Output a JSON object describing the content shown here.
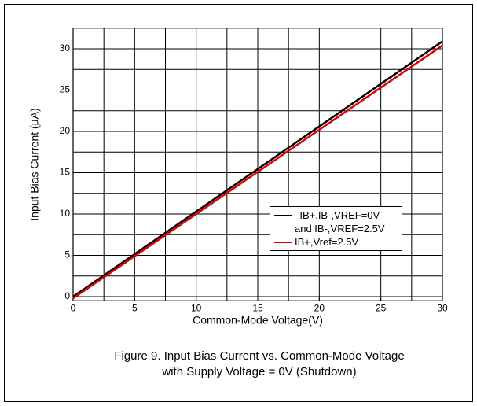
{
  "chart_data": {
    "type": "line",
    "xlabel": "Common-Mode Voltage(V)",
    "ylabel": "Input Bias Current (µA)",
    "caption": [
      "Figure 9. Input Bias Current vs. Common-Mode Voltage",
      "with Supply Voltage = 0V (Shutdown)"
    ],
    "x": [
      0,
      30
    ],
    "series": [
      {
        "name": "IB+,IB-,VREF=0V\nand IB-,VREF=2.5V",
        "color": "#000000",
        "values": [
          0,
          30.9
        ]
      },
      {
        "name": "IB+,Vref=2.5V",
        "color": "#e00000",
        "values": [
          -0.2,
          30.4
        ]
      }
    ],
    "xlim": [
      0,
      30
    ],
    "xticks": [
      0,
      5,
      10,
      15,
      20,
      25,
      30
    ],
    "ylim": [
      -0.5,
      32.5
    ],
    "yticks": [
      0,
      5,
      10,
      15,
      20,
      25,
      30
    ],
    "xgrid": [
      2.5,
      5,
      7.5,
      10,
      12.5,
      15,
      17.5,
      20,
      22.5,
      25,
      27.5
    ],
    "ygrid": [
      0,
      2.5,
      5,
      7.5,
      10,
      12.5,
      15,
      17.5,
      20,
      22.5,
      25,
      27.5,
      30
    ],
    "grid": true,
    "legend": "lower right"
  }
}
